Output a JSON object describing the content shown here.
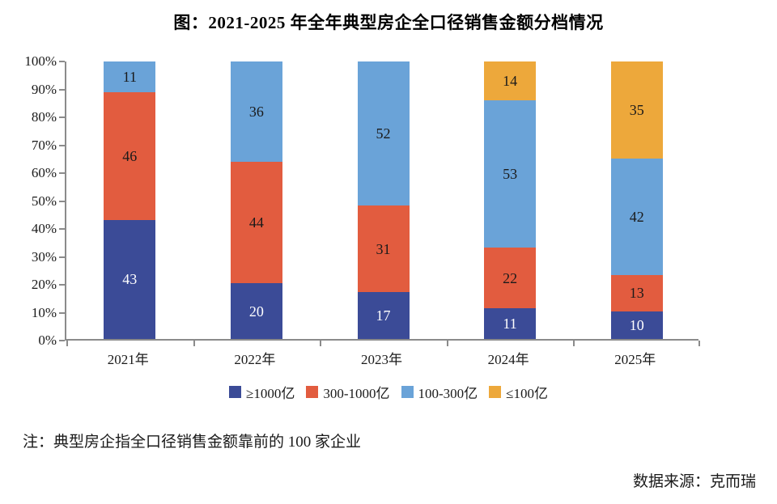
{
  "title": "图：2021-2025 年全年典型房企全口径销售金额分档情况",
  "note": "注：典型房企指全口径销售金额靠前的 100 家企业",
  "source": "数据来源：克而瑞",
  "colors": {
    "axis": "#8b8b8b",
    "background": "#ffffff",
    "tier_ge_1000": "#3b4b97",
    "tier_300_1000": "#e25c3f",
    "tier_100_300": "#6aa3d8",
    "tier_le_100": "#edа83b"
  },
  "chart_data": {
    "type": "bar",
    "stacked": true,
    "percent": true,
    "title": "图：2021-2025 年全年典型房企全口径销售金额分档情况",
    "categories": [
      "2021年",
      "2022年",
      "2023年",
      "2024年",
      "2025年"
    ],
    "series": [
      {
        "name": "≥1000亿",
        "color": "#3b4b97",
        "label_color": "#ffffff",
        "values": [
          43,
          20,
          17,
          11,
          10
        ]
      },
      {
        "name": "300-1000亿",
        "color": "#e25c3f",
        "label_color": "#1a1a1a",
        "values": [
          46,
          44,
          31,
          22,
          13
        ]
      },
      {
        "name": "100-300亿",
        "color": "#6aa3d8",
        "label_color": "#1a1a1a",
        "values": [
          11,
          36,
          52,
          53,
          42
        ]
      },
      {
        "name": "≤100亿",
        "color": "#eda83b",
        "label_color": "#1a1a1a",
        "values": [
          0,
          0,
          0,
          14,
          35
        ]
      }
    ],
    "y_ticks": [
      "0%",
      "10%",
      "20%",
      "30%",
      "40%",
      "50%",
      "60%",
      "70%",
      "80%",
      "90%",
      "100%"
    ],
    "ylim": [
      0,
      100
    ],
    "grid": false,
    "legend_position": "bottom",
    "xlabel": "",
    "ylabel": ""
  }
}
